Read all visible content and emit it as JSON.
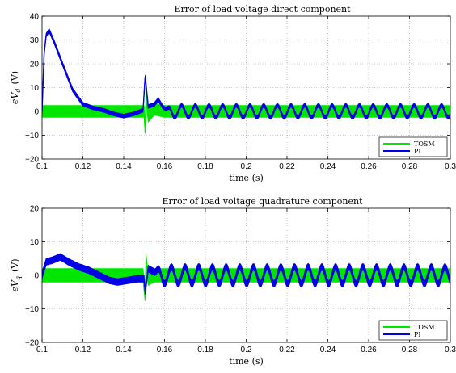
{
  "chart_data": [
    {
      "type": "line",
      "title": "Error of load voltage direct component",
      "xlabel": "time (s)",
      "ylabel": "eV_d (V)",
      "ylabel_prefix": "e",
      "ylabel_var": "V",
      "ylabel_sub": "d",
      "ylabel_unit": "(V)",
      "xlim": [
        0.1,
        0.3
      ],
      "ylim": [
        -20,
        40
      ],
      "xticks": [
        "0.1",
        "0.12",
        "0.14",
        "0.16",
        "0.18",
        "0.2",
        "0.22",
        "0.24",
        "0.26",
        "0.28",
        "0.3"
      ],
      "yticks": [
        "−20",
        "−10",
        "0",
        "10",
        "20",
        "30",
        "40"
      ],
      "grid": true,
      "legend_position": "bottom-right",
      "series": [
        {
          "name": "TOSM",
          "color": "#00e600",
          "x": [
            0.1,
            0.11,
            0.12,
            0.13,
            0.14,
            0.15,
            0.1505,
            0.151,
            0.152,
            0.155,
            0.16,
            0.2,
            0.25,
            0.3
          ],
          "y": [
            0.0,
            0.0,
            0.0,
            0.0,
            0.0,
            0.0,
            -8.0,
            6.0,
            -2.0,
            1.0,
            0.0,
            0.0,
            0.0,
            0.0
          ],
          "band": 2.5
        },
        {
          "name": "PI",
          "color": "#0000e6",
          "x": [
            0.1,
            0.101,
            0.102,
            0.1035,
            0.106,
            0.11,
            0.115,
            0.12,
            0.125,
            0.13,
            0.135,
            0.14,
            0.145,
            0.1495,
            0.1505,
            0.152,
            0.155,
            0.157,
            0.159,
            0.162
          ],
          "y": [
            0.0,
            24.0,
            32.0,
            34.0,
            29.0,
            20.0,
            9.0,
            3.0,
            1.5,
            0.5,
            -1.0,
            -2.0,
            -1.0,
            0.5,
            15.0,
            2.0,
            3.0,
            5.0,
            2.0,
            0.0
          ],
          "band": 0.8,
          "oscillation": {
            "from": 0.16,
            "to": 0.3,
            "period": 0.0067,
            "amplitude": 2.5,
            "offset": 0.0
          }
        }
      ]
    },
    {
      "type": "line",
      "title": "Error of load voltage quadrature component",
      "xlabel": "time (s)",
      "ylabel": "eV_q (V)",
      "ylabel_prefix": "e",
      "ylabel_var": "V",
      "ylabel_sub": "q",
      "ylabel_unit": "(V)",
      "xlim": [
        0.1,
        0.3
      ],
      "ylim": [
        -20,
        20
      ],
      "xticks": [
        "0.1",
        "0.12",
        "0.14",
        "0.16",
        "0.18",
        "0.2",
        "0.22",
        "0.24",
        "0.26",
        "0.28",
        "0.3"
      ],
      "yticks": [
        "−20",
        "−10",
        "0",
        "10",
        "20"
      ],
      "grid": true,
      "legend_position": "bottom-right",
      "series": [
        {
          "name": "TOSM",
          "color": "#00e600",
          "x": [
            0.1,
            0.11,
            0.12,
            0.13,
            0.14,
            0.1495,
            0.1505,
            0.151,
            0.152,
            0.155,
            0.3
          ],
          "y": [
            0.0,
            0.0,
            0.0,
            0.0,
            0.0,
            0.0,
            -6.0,
            4.0,
            -1.0,
            0.0,
            0.0
          ],
          "band": 2.0
        },
        {
          "name": "PI",
          "color": "#0000e6",
          "x": [
            0.1,
            0.102,
            0.105,
            0.109,
            0.113,
            0.118,
            0.123,
            0.128,
            0.133,
            0.137,
            0.142,
            0.147,
            0.15,
            0.1505,
            0.152,
            0.155
          ],
          "y": [
            0.0,
            4.0,
            4.5,
            5.5,
            4.0,
            2.5,
            1.5,
            0.0,
            -1.5,
            -2.0,
            -1.5,
            -1.0,
            -1.0,
            -5.0,
            2.0,
            1.0
          ],
          "band": 1.0,
          "oscillation": {
            "from": 0.155,
            "to": 0.3,
            "period": 0.0067,
            "amplitude": 2.5,
            "offset": 0.0
          }
        }
      ]
    }
  ]
}
